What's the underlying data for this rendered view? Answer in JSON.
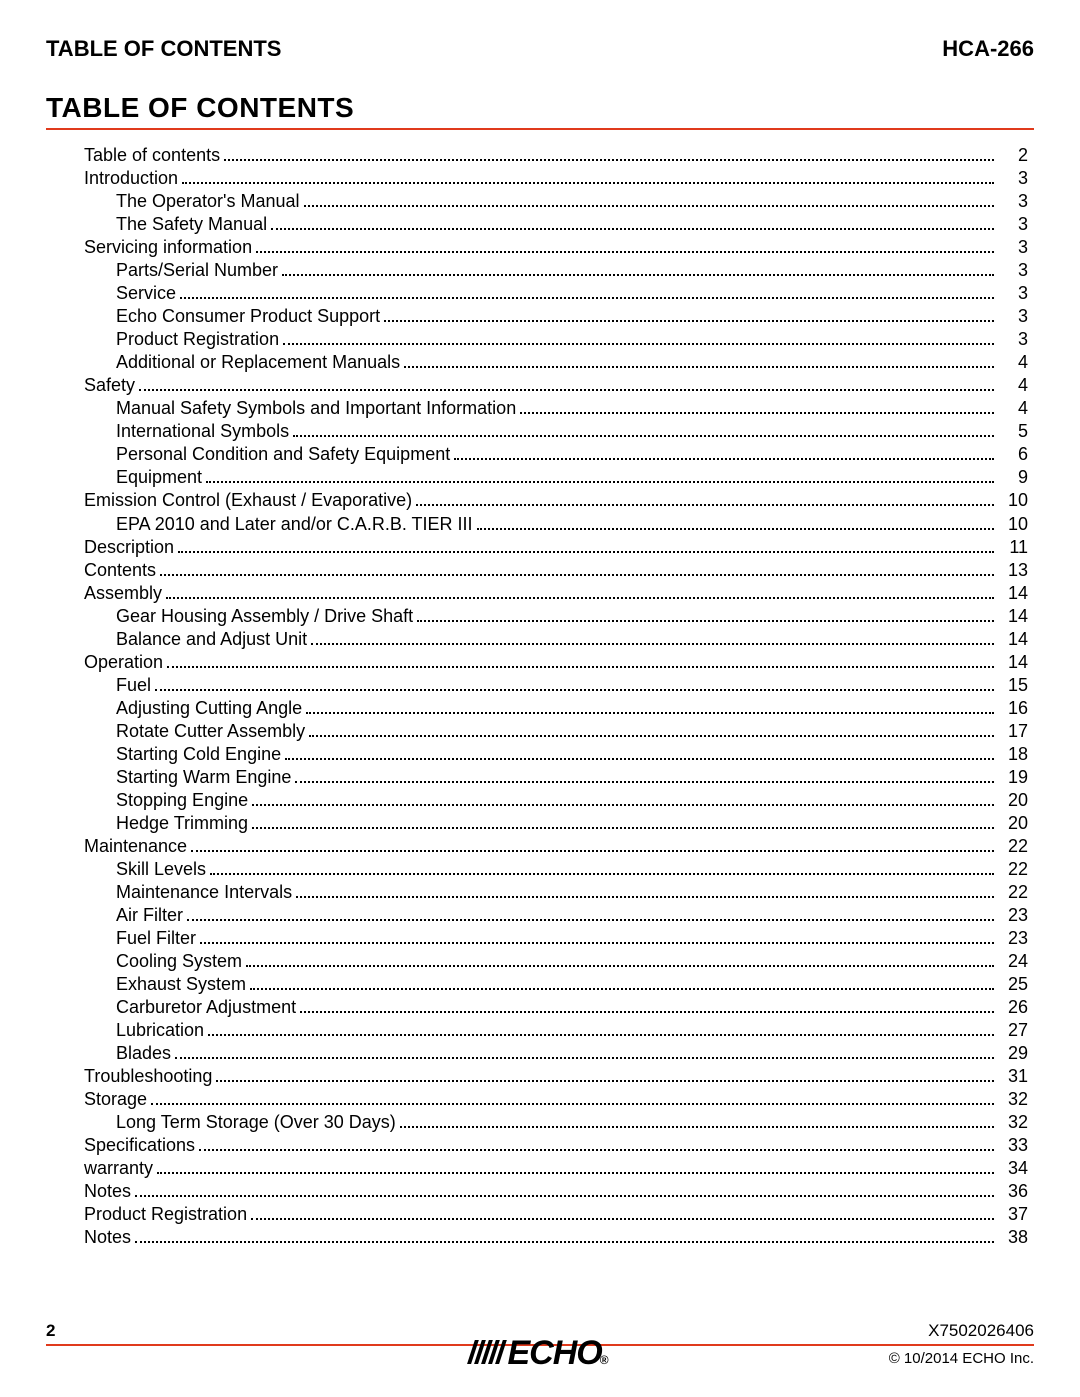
{
  "header": {
    "left": "TABLE OF CONTENTS",
    "right": "HCA-266"
  },
  "title": "TABLE OF CONTENTS",
  "toc": [
    {
      "label": "Table of contents",
      "page": "2",
      "level": 0
    },
    {
      "label": "Introduction",
      "page": "3",
      "level": 0
    },
    {
      "label": "The Operator's Manual",
      "page": "3",
      "level": 1
    },
    {
      "label": "The Safety Manual",
      "page": "3",
      "level": 1
    },
    {
      "label": "Servicing information",
      "page": "3",
      "level": 0
    },
    {
      "label": "Parts/Serial Number",
      "page": "3",
      "level": 1
    },
    {
      "label": "Service",
      "page": "3",
      "level": 1
    },
    {
      "label": "Echo Consumer Product Support",
      "page": "3",
      "level": 1
    },
    {
      "label": "Product Registration",
      "page": "3",
      "level": 1
    },
    {
      "label": "Additional or Replacement Manuals",
      "page": "4",
      "level": 1
    },
    {
      "label": "Safety",
      "page": "4",
      "level": 0
    },
    {
      "label": "Manual Safety Symbols and Important Information",
      "page": "4",
      "level": 1
    },
    {
      "label": "International Symbols",
      "page": "5",
      "level": 1
    },
    {
      "label": "Personal Condition and Safety Equipment",
      "page": "6",
      "level": 1
    },
    {
      "label": "Equipment",
      "page": "9",
      "level": 1
    },
    {
      "label": "Emission Control (Exhaust / Evaporative)",
      "page": "10",
      "level": 0
    },
    {
      "label": "EPA 2010 and Later and/or C.A.R.B. TIER III",
      "page": "10",
      "level": 1
    },
    {
      "label": "Description",
      "page": "11",
      "level": 0
    },
    {
      "label": "Contents",
      "page": "13",
      "level": 0
    },
    {
      "label": "Assembly",
      "page": "14",
      "level": 0
    },
    {
      "label": "Gear Housing Assembly / Drive Shaft",
      "page": "14",
      "level": 1
    },
    {
      "label": "Balance and Adjust Unit",
      "page": "14",
      "level": 1
    },
    {
      "label": "Operation",
      "page": "14",
      "level": 0
    },
    {
      "label": "Fuel",
      "page": "15",
      "level": 1
    },
    {
      "label": "Adjusting Cutting Angle",
      "page": "16",
      "level": 1
    },
    {
      "label": "Rotate Cutter Assembly",
      "page": "17",
      "level": 1
    },
    {
      "label": "Starting Cold Engine",
      "page": "18",
      "level": 1
    },
    {
      "label": "Starting Warm Engine",
      "page": "19",
      "level": 1
    },
    {
      "label": "Stopping Engine",
      "page": "20",
      "level": 1
    },
    {
      "label": "Hedge Trimming",
      "page": "20",
      "level": 1
    },
    {
      "label": "Maintenance",
      "page": "22",
      "level": 0
    },
    {
      "label": "Skill Levels",
      "page": "22",
      "level": 1
    },
    {
      "label": "Maintenance Intervals",
      "page": "22",
      "level": 1
    },
    {
      "label": "Air Filter",
      "page": "23",
      "level": 1
    },
    {
      "label": "Fuel Filter",
      "page": "23",
      "level": 1
    },
    {
      "label": "Cooling System",
      "page": "24",
      "level": 1
    },
    {
      "label": "Exhaust System",
      "page": "25",
      "level": 1
    },
    {
      "label": "Carburetor Adjustment",
      "page": "26",
      "level": 1
    },
    {
      "label": "Lubrication",
      "page": "27",
      "level": 1
    },
    {
      "label": "Blades",
      "page": "29",
      "level": 1
    },
    {
      "label": "Troubleshooting",
      "page": "31",
      "level": 0
    },
    {
      "label": "Storage",
      "page": "32",
      "level": 0
    },
    {
      "label": "Long Term Storage (Over 30 Days)",
      "page": "32",
      "level": 1
    },
    {
      "label": "Specifications",
      "page": "33",
      "level": 0
    },
    {
      "label": "warranty",
      "page": "34",
      "level": 0
    },
    {
      "label": "Notes",
      "page": "36",
      "level": 0
    },
    {
      "label": "Product Registration",
      "page": "37",
      "level": 0
    },
    {
      "label": "Notes",
      "page": "38",
      "level": 0
    }
  ],
  "footer": {
    "page_number": "2",
    "doc_code": "X7502026406",
    "copyright": "© 10/2014 ECHO Inc.",
    "logo_text": "ECHO"
  },
  "colors": {
    "rule": "#e03a1c",
    "text": "#000000",
    "background": "#ffffff"
  },
  "typography": {
    "body_family": "Arial",
    "header_size_pt": 22,
    "title_size_pt": 28,
    "toc_size_pt": 18,
    "footer_size_pt": 17
  }
}
